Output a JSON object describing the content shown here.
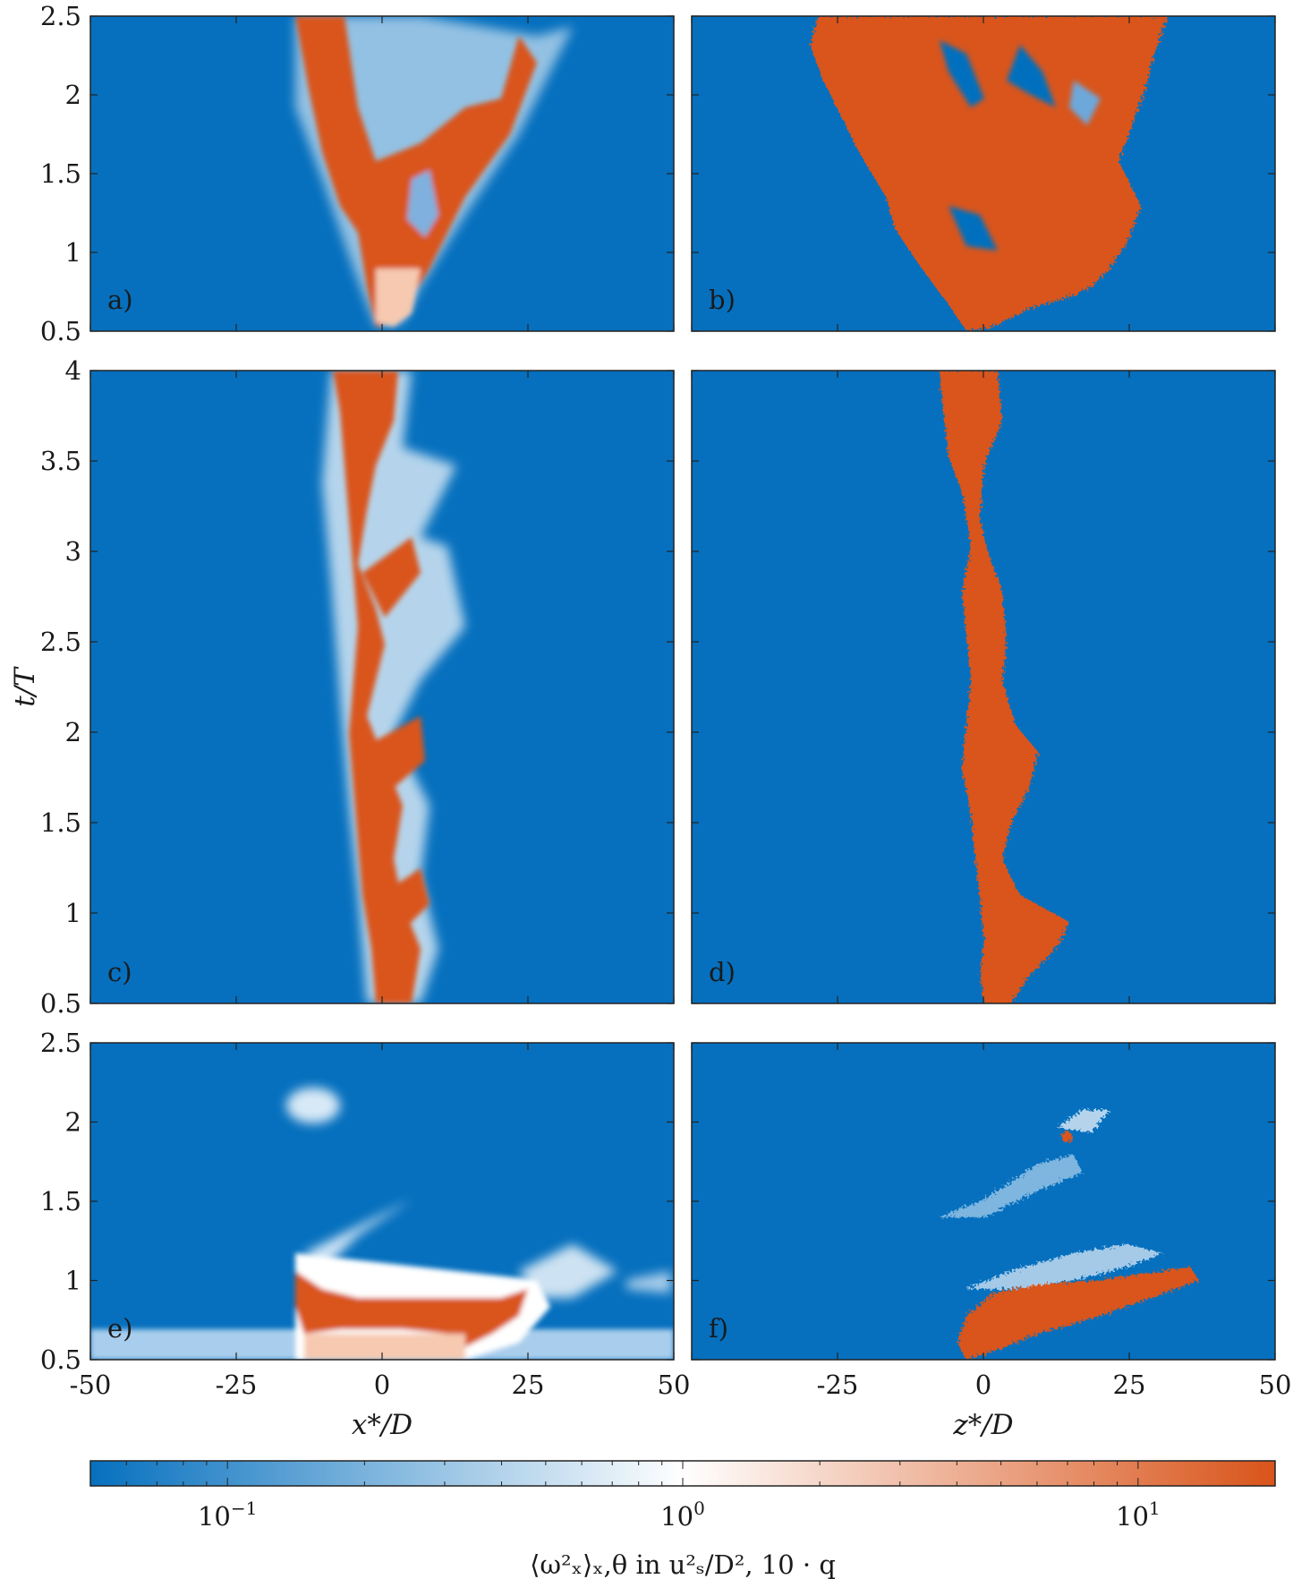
{
  "colors": {
    "low": "#0670be",
    "mid": "#ffffff",
    "high": "#d9541a"
  },
  "chart_data": [
    {
      "type": "heatmap",
      "panel": "a)",
      "xlim": [
        -50,
        50
      ],
      "ylim": [
        0.5,
        2.5
      ],
      "yticks": [
        "0.5",
        "1",
        "1.5",
        "2",
        "2.5"
      ],
      "xticks": [],
      "ylabel": ""
    },
    {
      "type": "heatmap",
      "panel": "b)",
      "xlim": [
        -50,
        50
      ],
      "ylim": [
        0.5,
        2.5
      ],
      "yticks": [],
      "xticks": []
    },
    {
      "type": "heatmap",
      "panel": "c)",
      "xlim": [
        -50,
        50
      ],
      "ylim": [
        0.5,
        4
      ],
      "yticks": [
        "0.5",
        "1",
        "1.5",
        "2",
        "2.5",
        "3",
        "3.5",
        "4"
      ],
      "xticks": [],
      "ylabel": "t/T"
    },
    {
      "type": "heatmap",
      "panel": "d)",
      "xlim": [
        -50,
        50
      ],
      "ylim": [
        0.5,
        4
      ],
      "yticks": [],
      "xticks": []
    },
    {
      "type": "heatmap",
      "panel": "e)",
      "xlim": [
        -50,
        50
      ],
      "ylim": [
        0.5,
        2.5
      ],
      "yticks": [
        "0.5",
        "1",
        "1.5",
        "2",
        "2.5"
      ],
      "xticks": [
        "-50",
        "-25",
        "0",
        "25",
        "50"
      ],
      "xlabel": "x*/D"
    },
    {
      "type": "heatmap",
      "panel": "f)",
      "xlim": [
        -50,
        50
      ],
      "ylim": [
        0.5,
        2.5
      ],
      "yticks": [],
      "xticks": [
        "-25",
        "0",
        "25",
        "50"
      ],
      "xlabel": "z*/D"
    }
  ],
  "colorbar": {
    "scale": "log",
    "range": [
      0.05,
      20
    ],
    "ticks": [
      {
        "value": 0.1,
        "base": "10",
        "exp": "−1"
      },
      {
        "value": 1,
        "base": "10",
        "exp": "0"
      },
      {
        "value": 10,
        "base": "10",
        "exp": "1"
      }
    ],
    "label": "⟨ω²ₓ⟩ₓ,θ in u²ₛ/D², 10 · q"
  }
}
